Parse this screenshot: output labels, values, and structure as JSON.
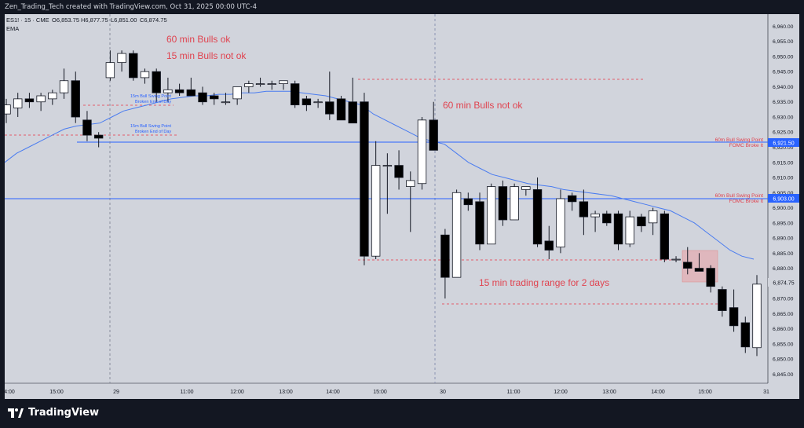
{
  "attribution": "Zen_Trading_Tech created with TradingView.com, Oct 31, 2025 00:00 UTC-4",
  "legend": {
    "symbol_line": "ES1! · 15 · CME",
    "o": "O6,853.75",
    "h": "H6,877.75",
    "l": "L6,851.00",
    "c": "C6,874.75",
    "indicator": "EMA"
  },
  "annotations": {
    "n1": "60 min Bulls ok",
    "n2": "15 min Bulls not ok",
    "n3": "60 min Bulls not ok",
    "n4": "15 min trading range for 2 days",
    "s1a": "15m Bull Swing Point",
    "s1b": "Broken End of Day",
    "s2a": "15m Bull Swing Point",
    "s2b": "Broken End of Day",
    "lvl1a": "60m Bull Swing Point",
    "lvl1b": "FOMC Broke It",
    "lvl2a": "60m Bull Swing Point",
    "lvl2b": "FOMC Broke It"
  },
  "price_axis": {
    "ticks": [
      "6,960.00",
      "6,955.00",
      "6,950.00",
      "6,945.00",
      "6,940.00",
      "6,935.00",
      "6,930.00",
      "6,925.00",
      "6,920.00",
      "6,915.00",
      "6,910.00",
      "6,905.00",
      "6,900.00",
      "6,895.00",
      "6,890.00",
      "6,885.00",
      "6,880.00",
      "6,875.00",
      "6,870.00",
      "6,865.00",
      "6,860.00",
      "6,855.00",
      "6,850.00",
      "6,845.00"
    ],
    "badge_upper": "6,921.50",
    "badge_lower": "6,903.00",
    "badge_last": "6,874.75",
    "badge_colors": {
      "level": "#2962ff",
      "last": "#d1d4dc"
    }
  },
  "time_axis": {
    "labels": [
      "4:00",
      "15:00",
      "29",
      "11:00",
      "12:00",
      "13:00",
      "14:00",
      "15:00",
      "30",
      "11:00",
      "12:00",
      "13:00",
      "14:00",
      "15:00",
      "31"
    ]
  },
  "chart_data": {
    "type": "candlestick",
    "symbol": "ES1!",
    "timeframe": "15",
    "exchange": "CME",
    "y_range": [
      6842,
      6964
    ],
    "candles": [
      {
        "o": 6931,
        "h": 6936,
        "l": 6928,
        "c": 6934
      },
      {
        "o": 6933,
        "h": 6938,
        "l": 6930,
        "c": 6936
      },
      {
        "o": 6936,
        "h": 6938,
        "l": 6933,
        "c": 6935
      },
      {
        "o": 6935,
        "h": 6938,
        "l": 6932,
        "c": 6937
      },
      {
        "o": 6936,
        "h": 6939,
        "l": 6934,
        "c": 6938
      },
      {
        "o": 6938,
        "h": 6946,
        "l": 6936,
        "c": 6942
      },
      {
        "o": 6942,
        "h": 6945,
        "l": 6928,
        "c": 6930
      },
      {
        "o": 6929,
        "h": 6932,
        "l": 6922,
        "c": 6924
      },
      {
        "o": 6924,
        "h": 6925,
        "l": 6920,
        "c": 6923
      },
      {
        "o": 6943,
        "h": 6952,
        "l": 6942,
        "c": 6948
      },
      {
        "o": 6948,
        "h": 6952,
        "l": 6945,
        "c": 6951
      },
      {
        "o": 6951,
        "h": 6952,
        "l": 6942,
        "c": 6943
      },
      {
        "o": 6943,
        "h": 6946,
        "l": 6941,
        "c": 6945
      },
      {
        "o": 6945,
        "h": 6946,
        "l": 6935,
        "c": 6938
      },
      {
        "o": 6938,
        "h": 6943,
        "l": 6935,
        "c": 6939
      },
      {
        "o": 6939,
        "h": 6941,
        "l": 6937,
        "c": 6938
      },
      {
        "o": 6939,
        "h": 6943,
        "l": 6937,
        "c": 6937
      },
      {
        "o": 6938,
        "h": 6940,
        "l": 6934,
        "c": 6935
      },
      {
        "o": 6937,
        "h": 6938,
        "l": 6934,
        "c": 6936
      },
      {
        "o": 6935,
        "h": 6938,
        "l": 6934,
        "c": 6935
      },
      {
        "o": 6936,
        "h": 6940,
        "l": 6934,
        "c": 6940
      },
      {
        "o": 6940,
        "h": 6942,
        "l": 6938,
        "c": 6941
      },
      {
        "o": 6941,
        "h": 6943,
        "l": 6940,
        "c": 6941
      },
      {
        "o": 6941,
        "h": 6942,
        "l": 6939,
        "c": 6941
      },
      {
        "o": 6941,
        "h": 6942,
        "l": 6939,
        "c": 6942
      },
      {
        "o": 6941,
        "h": 6942,
        "l": 6933,
        "c": 6934
      },
      {
        "o": 6936,
        "h": 6937,
        "l": 6932,
        "c": 6934
      },
      {
        "o": 6935,
        "h": 6936,
        "l": 6933,
        "c": 6935
      },
      {
        "o": 6935,
        "h": 6945,
        "l": 6929,
        "c": 6931
      },
      {
        "o": 6936,
        "h": 6937,
        "l": 6929,
        "c": 6929
      },
      {
        "o": 6935,
        "h": 6943,
        "l": 6928,
        "c": 6928
      },
      {
        "o": 6935,
        "h": 6938,
        "l": 6881,
        "c": 6884
      },
      {
        "o": 6884,
        "h": 6922,
        "l": 6883,
        "c": 6914
      },
      {
        "o": 6914,
        "h": 6918,
        "l": 6898,
        "c": 6914
      },
      {
        "o": 6914,
        "h": 6919,
        "l": 6906,
        "c": 6910
      },
      {
        "o": 6907,
        "h": 6912,
        "l": 6892,
        "c": 6909
      },
      {
        "o": 6908,
        "h": 6930,
        "l": 6906,
        "c": 6929
      },
      {
        "o": 6929,
        "h": 6935,
        "l": 6919,
        "c": 6919
      },
      {
        "o": 6891,
        "h": 6893,
        "l": 6870,
        "c": 6877
      },
      {
        "o": 6877,
        "h": 6906,
        "l": 6877,
        "c": 6905
      },
      {
        "o": 6903,
        "h": 6905,
        "l": 6899,
        "c": 6901
      },
      {
        "o": 6902,
        "h": 6905,
        "l": 6886,
        "c": 6888
      },
      {
        "o": 6888,
        "h": 6908,
        "l": 6888,
        "c": 6907
      },
      {
        "o": 6907,
        "h": 6909,
        "l": 6894,
        "c": 6896
      },
      {
        "o": 6896,
        "h": 6908,
        "l": 6896,
        "c": 6907
      },
      {
        "o": 6906,
        "h": 6907,
        "l": 6904,
        "c": 6907
      },
      {
        "o": 6906,
        "h": 6910,
        "l": 6887,
        "c": 6888
      },
      {
        "o": 6889,
        "h": 6894,
        "l": 6883,
        "c": 6886
      },
      {
        "o": 6887,
        "h": 6906,
        "l": 6885,
        "c": 6903
      },
      {
        "o": 6904,
        "h": 6905,
        "l": 6899,
        "c": 6902
      },
      {
        "o": 6902,
        "h": 6906,
        "l": 6891,
        "c": 6897
      },
      {
        "o": 6897,
        "h": 6899,
        "l": 6892,
        "c": 6898
      },
      {
        "o": 6898,
        "h": 6899,
        "l": 6894,
        "c": 6895
      },
      {
        "o": 6898,
        "h": 6899,
        "l": 6886,
        "c": 6888
      },
      {
        "o": 6888,
        "h": 6899,
        "l": 6887,
        "c": 6897
      },
      {
        "o": 6897,
        "h": 6898,
        "l": 6892,
        "c": 6894
      },
      {
        "o": 6895,
        "h": 6900,
        "l": 6891,
        "c": 6899
      },
      {
        "o": 6898,
        "h": 6899,
        "l": 6882,
        "c": 6883
      },
      {
        "o": 6883,
        "h": 6884,
        "l": 6882,
        "c": 6883
      },
      {
        "o": 6882,
        "h": 6887,
        "l": 6878,
        "c": 6880
      },
      {
        "o": 6880,
        "h": 6885,
        "l": 6879,
        "c": 6879
      },
      {
        "o": 6880,
        "h": 6881,
        "l": 6872,
        "c": 6874
      },
      {
        "o": 6873,
        "h": 6874,
        "l": 6864,
        "c": 6866
      },
      {
        "o": 6867,
        "h": 6873,
        "l": 6859,
        "c": 6861
      },
      {
        "o": 6862,
        "h": 6864,
        "l": 6852,
        "c": 6854
      },
      {
        "o": 6853.75,
        "h": 6877.75,
        "l": 6851,
        "c": 6874.75
      }
    ],
    "ema": [
      6915,
      6918,
      6920,
      6922,
      6924,
      6926,
      6927,
      6927.5,
      6928,
      6930,
      6932,
      6933,
      6934,
      6935,
      6936,
      6936.5,
      6937,
      6937,
      6937.5,
      6937.5,
      6938,
      6938,
      6938.5,
      6938.5,
      6938.5,
      6938,
      6937.5,
      6937,
      6936,
      6935,
      6934,
      6931,
      6929,
      6927,
      6925,
      6923,
      6922,
      6921,
      6918,
      6915,
      6913,
      6911,
      6910,
      6909,
      6908,
      6907.5,
      6907,
      6906,
      6905.5,
      6905,
      6904.5,
      6904,
      6903,
      6902,
      6901,
      6900,
      6899,
      6897,
      6895,
      6892,
      6889,
      6886,
      6884,
      6883
    ]
  }
}
